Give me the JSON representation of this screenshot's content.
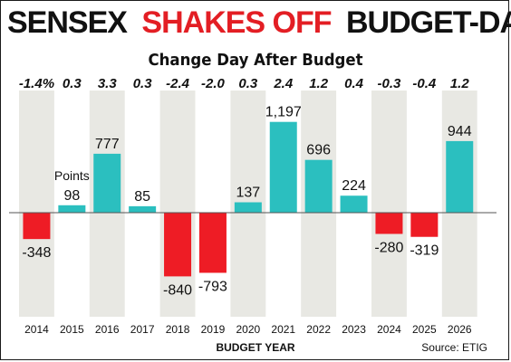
{
  "headline": {
    "part1": "SENSEX",
    "part2": "SHAKES OFF",
    "part3": "BUDGET-DAY BLOW"
  },
  "chart_data": {
    "type": "bar",
    "title": "Change Day After Budget",
    "xlabel": "BUDGET YEAR",
    "ylabel": "",
    "categories": [
      "2014",
      "2015",
      "2016",
      "2017",
      "2018",
      "2019",
      "2020",
      "2021",
      "2022",
      "2023",
      "2024",
      "2025",
      "2026"
    ],
    "series": [
      {
        "values": [
          -348,
          98,
          777,
          85,
          -840,
          -793,
          137,
          1197,
          696,
          224,
          -280,
          -319,
          944
        ]
      }
    ],
    "percent_change": [
      "-1.4%",
      "0.3",
      "3.3",
      "0.3",
      "-2.4",
      "-2.0",
      "0.3",
      "2.4",
      "1.2",
      "0.4",
      "-0.3",
      "-0.4",
      "1.2"
    ],
    "value_labels": [
      "-348",
      "98",
      "777",
      "85",
      "-840",
      "-793",
      "137",
      "1,197",
      "696",
      "224",
      "-280",
      "-319",
      "944"
    ],
    "annotation": "Points",
    "source": "Source: ETIG",
    "colors": {
      "positive": "#2bbfbf",
      "negative": "#ee1c25",
      "band": "#e8e8e3",
      "headline_accent": "#e31e24",
      "text": "#111111"
    }
  }
}
